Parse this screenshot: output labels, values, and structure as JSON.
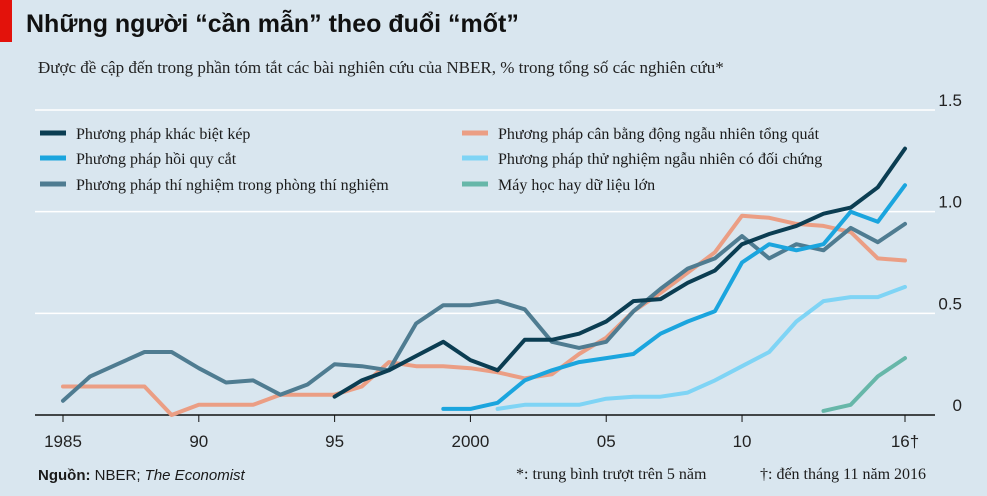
{
  "header": {
    "title": "Những người “cần mẫn” theo đuổi “mốt”",
    "subtitle": "Được đề cập đến trong phần tóm tắt các bài nghiên cứu của NBER, % trong tổng số các nghiên cứu*"
  },
  "footer": {
    "source_label": "Nguồn:",
    "source_text": " NBER; ",
    "source_italic": "The Economist",
    "note_star": "*: trung bình trượt trên 5 năm",
    "note_dagger": "†: đến tháng 11 năm 2016"
  },
  "colors": {
    "background": "#d9e6ef",
    "grid": "#ffffff",
    "brand_red": "#e3120b"
  },
  "chart_data": {
    "type": "line",
    "title": "Những người “cần mẫn” theo đuổi “mốt”",
    "subtitle": "Được đề cập đến trong phần tóm tắt các bài nghiên cứu của NBER, % trong tổng số các nghiên cứu*",
    "xlim": [
      1985,
      2016
    ],
    "ylim": [
      0,
      1.5
    ],
    "x_ticks": [
      1985,
      1990,
      1995,
      2000,
      2005,
      2010,
      2016
    ],
    "x_tick_labels": [
      "1985",
      "90",
      "95",
      "2000",
      "05",
      "10",
      "16†"
    ],
    "y_ticks": [
      0,
      0.5,
      1.0,
      1.5
    ],
    "y_tick_labels": [
      "0",
      "0.5",
      "1.0",
      "1.5"
    ],
    "grid": true,
    "legend": "top-left, two columns",
    "series": [
      {
        "name": "Phương pháp khác biệt kép",
        "color": "#0b3d52",
        "x": [
          1995,
          1996,
          1997,
          1998,
          1999,
          2000,
          2001,
          2002,
          2003,
          2004,
          2005,
          2006,
          2007,
          2008,
          2009,
          2010,
          2011,
          2012,
          2013,
          2014,
          2015,
          2016
        ],
        "y": [
          0.09,
          0.17,
          0.22,
          0.29,
          0.36,
          0.27,
          0.22,
          0.37,
          0.37,
          0.4,
          0.46,
          0.56,
          0.57,
          0.65,
          0.71,
          0.84,
          0.89,
          0.93,
          0.99,
          1.02,
          1.12,
          1.31
        ]
      },
      {
        "name": "Phương pháp hồi quy cắt",
        "color": "#1ba5de",
        "x": [
          1999,
          2000,
          2001,
          2002,
          2003,
          2004,
          2005,
          2006,
          2007,
          2008,
          2009,
          2010,
          2011,
          2012,
          2013,
          2014,
          2015,
          2016
        ],
        "y": [
          0.03,
          0.03,
          0.06,
          0.17,
          0.22,
          0.26,
          0.28,
          0.3,
          0.4,
          0.46,
          0.51,
          0.75,
          0.84,
          0.81,
          0.84,
          1.0,
          0.95,
          1.13
        ]
      },
      {
        "name": "Phương pháp thí nghiệm trong phòng thí nghiệm",
        "color": "#4f7c91",
        "x": [
          1985,
          1986,
          1987,
          1988,
          1989,
          1990,
          1991,
          1992,
          1993,
          1994,
          1995,
          1996,
          1997,
          1998,
          1999,
          2000,
          2001,
          2002,
          2003,
          2004,
          2005,
          2006,
          2007,
          2008,
          2009,
          2010,
          2011,
          2012,
          2013,
          2014,
          2015,
          2016
        ],
        "y": [
          0.07,
          0.19,
          0.25,
          0.31,
          0.31,
          0.23,
          0.16,
          0.17,
          0.1,
          0.15,
          0.25,
          0.24,
          0.22,
          0.45,
          0.54,
          0.54,
          0.56,
          0.52,
          0.36,
          0.33,
          0.36,
          0.51,
          0.62,
          0.72,
          0.77,
          0.88,
          0.77,
          0.84,
          0.81,
          0.92,
          0.85,
          0.94
        ]
      },
      {
        "name": "Phương pháp cân bằng động ngẫu nhiên tổng quát",
        "color": "#eb9e84",
        "x": [
          1985,
          1986,
          1987,
          1988,
          1989,
          1990,
          1991,
          1992,
          1993,
          1994,
          1995,
          1996,
          1997,
          1998,
          1999,
          2000,
          2001,
          2002,
          2003,
          2004,
          2005,
          2006,
          2007,
          2008,
          2009,
          2010,
          2011,
          2012,
          2013,
          2014,
          2015,
          2016
        ],
        "y": [
          0.14,
          0.14,
          0.14,
          0.14,
          0.0,
          0.05,
          0.05,
          0.05,
          0.1,
          0.1,
          0.1,
          0.14,
          0.26,
          0.24,
          0.24,
          0.23,
          0.21,
          0.18,
          0.2,
          0.3,
          0.38,
          0.51,
          0.6,
          0.7,
          0.8,
          0.98,
          0.97,
          0.94,
          0.93,
          0.9,
          0.77,
          0.76
        ]
      },
      {
        "name": "Phương pháp thử nghiệm ngẫu nhiên có đối chứng",
        "color": "#7fd4f5",
        "x": [
          2001,
          2002,
          2003,
          2004,
          2005,
          2006,
          2007,
          2008,
          2009,
          2010,
          2011,
          2012,
          2013,
          2014,
          2015,
          2016
        ],
        "y": [
          0.03,
          0.05,
          0.05,
          0.05,
          0.08,
          0.09,
          0.09,
          0.11,
          0.17,
          0.24,
          0.31,
          0.46,
          0.56,
          0.58,
          0.58,
          0.63
        ]
      },
      {
        "name": "Máy học hay dữ liệu lớn",
        "color": "#67b7a9",
        "x": [
          2013,
          2014,
          2015,
          2016
        ],
        "y": [
          0.02,
          0.05,
          0.19,
          0.28
        ]
      }
    ]
  }
}
